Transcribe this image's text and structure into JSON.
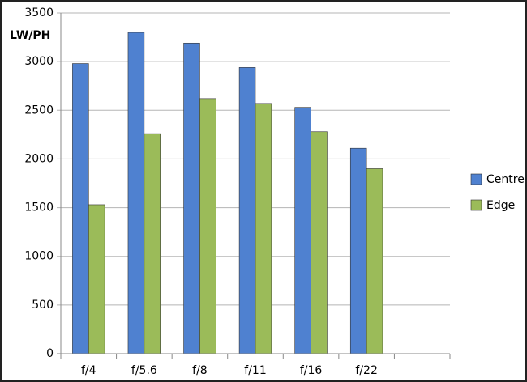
{
  "chart_data": {
    "type": "bar",
    "y_label": "LW/PH",
    "categories": [
      "f/4",
      "f/5.6",
      "f/8",
      "f/11",
      "f/16",
      "f/22",
      null
    ],
    "series": [
      {
        "name": "Centre",
        "color": "#4f81d0",
        "values": [
          2980,
          3300,
          3190,
          2940,
          2530,
          2110,
          null
        ]
      },
      {
        "name": "Edge",
        "color": "#9bbb59",
        "values": [
          1530,
          2260,
          2620,
          2570,
          2280,
          1900,
          null
        ]
      }
    ],
    "ylim": [
      0,
      3500
    ],
    "yticks": [
      0,
      500,
      1000,
      1500,
      2000,
      2500,
      3000,
      3500
    ],
    "grid": true,
    "legend": "right"
  }
}
